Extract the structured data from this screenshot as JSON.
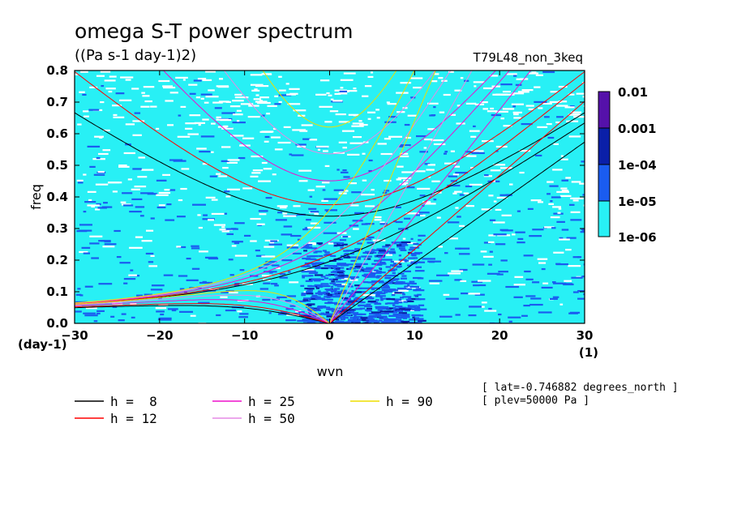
{
  "chart_data": {
    "type": "heatmap",
    "title": "omega S-T power spectrum",
    "subtitle": "((Pa s-1 day-1)2)",
    "case_name": "T79L48_non_3keq",
    "xlabel": "wvn",
    "ylabel": "freq",
    "x_unit": "(1)",
    "y_unit": "(day-1)",
    "xlim": [
      -30,
      30
    ],
    "ylim": [
      0,
      0.8
    ],
    "xticks": [
      "-30",
      "-20",
      "-10",
      "0",
      "10",
      "20",
      "30"
    ],
    "yticks": [
      "0.0",
      "0.1",
      "0.2",
      "0.3",
      "0.4",
      "0.5",
      "0.6",
      "0.7",
      "0.8"
    ],
    "colorbar": {
      "labels": [
        "0.01",
        "0.001",
        "1e-04",
        "1e-05",
        "1e-06"
      ],
      "colors": [
        "#5511aa",
        "#0a1fa8",
        "#1a5cf0",
        "#28f0f5"
      ]
    },
    "dispersion_curves": [
      {
        "label": "h =  8",
        "h": 8,
        "color": "#000000"
      },
      {
        "label": "h = 12",
        "h": 12,
        "color": "#ff0000"
      },
      {
        "label": "h = 25",
        "h": 25,
        "color": "#ee10cc"
      },
      {
        "label": "h = 50",
        "h": 50,
        "color": "#e58ae5"
      },
      {
        "label": "h = 90",
        "h": 90,
        "color": "#eedd00"
      }
    ],
    "info": [
      "[ lat=-0.746882 degrees_north ]",
      "[ plev=50000 Pa ]"
    ]
  }
}
